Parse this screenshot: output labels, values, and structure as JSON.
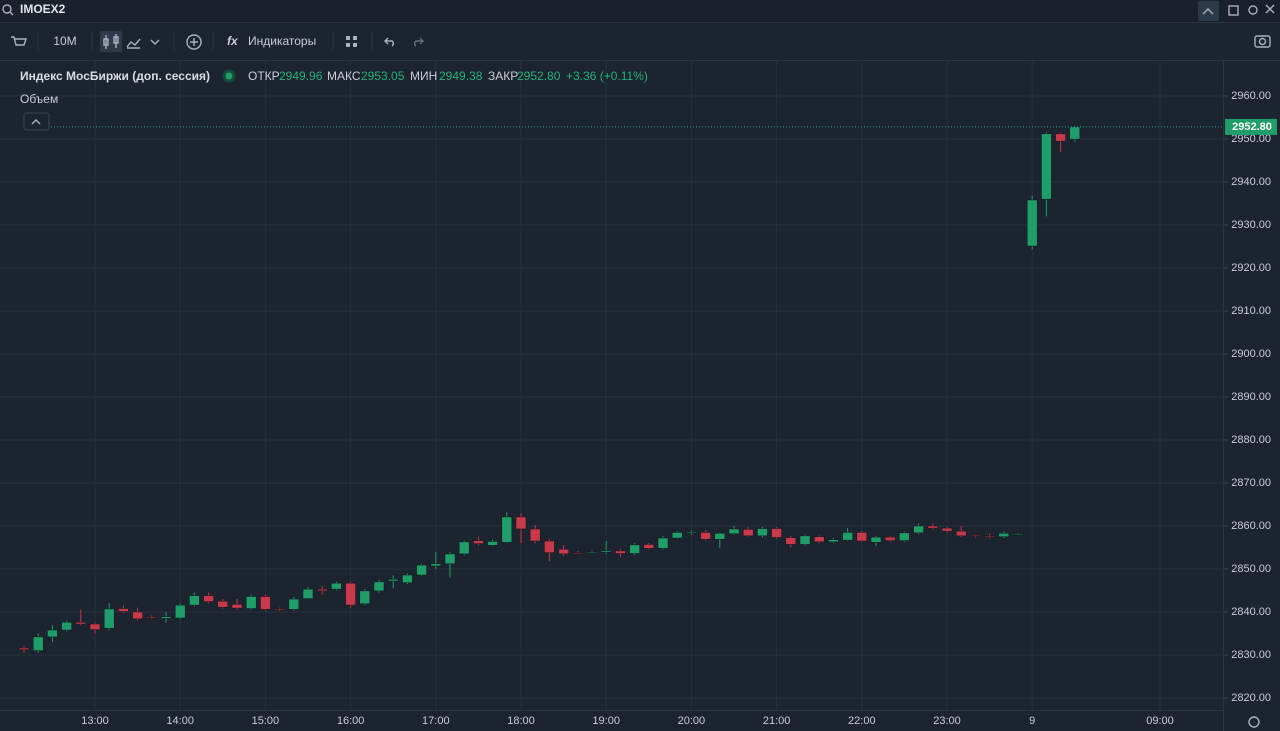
{
  "search": "IMOEX2",
  "toolbar": {
    "interval": "10М",
    "indicators": "Индикаторы"
  },
  "legend": {
    "name": "Индекс МосБиржи (доп. сессия)",
    "open_label": "ОТКР",
    "open": "2949.96",
    "high_label": "МАКС",
    "high": "2953.05",
    "low_label": "МИН",
    "low": "2949.38",
    "close_label": "ЗАКР",
    "close": "2952.80",
    "change": "+3.36 (+0.11%)"
  },
  "volume_label": "Объем",
  "chart_data": {
    "type": "candlestick",
    "up_color": "#1f9e6a",
    "down_color": "#c8394b",
    "categories": [
      null,
      null,
      null,
      null,
      null,
      "13:00",
      null,
      null,
      null,
      null,
      null,
      "14:00",
      null,
      null,
      null,
      null,
      null,
      "15:00",
      null,
      null,
      null,
      null,
      null,
      "16:00",
      null,
      null,
      null,
      null,
      null,
      "17:00",
      null,
      null,
      null,
      null,
      null,
      "18:00",
      null,
      null,
      null,
      null,
      null,
      "19:00",
      null,
      null,
      null,
      null,
      null,
      "20:00",
      null,
      null,
      null,
      null,
      null,
      "21:00",
      null,
      null,
      null,
      null,
      null,
      "22:00",
      null,
      null,
      null,
      null,
      null,
      "23:00",
      null,
      null,
      null,
      null,
      null,
      "9",
      null,
      null,
      null,
      null,
      null,
      null,
      null,
      null,
      "09:00"
    ],
    "open": [
      2831.6,
      2831,
      2834.2,
      2835.8,
      2837.6,
      2837.2,
      2836.2,
      2840.8,
      2840,
      2838.8,
      2838.5,
      2838.6,
      2841.6,
      2843.8,
      2842.5,
      2841.8,
      2840.8,
      2843.6,
      2840.7,
      2840.6,
      2843.1,
      2845.3,
      2845.3,
      2846.7,
      2841.9,
      2844.9,
      2847.2,
      2846.8,
      2848.6,
      2850.7,
      2851.2,
      2853.5,
      2856.6,
      2855.5,
      2856.2,
      2862.1,
      2859.3,
      2856.5,
      2854.6,
      2853.8,
      2853.9,
      2853.9,
      2854.2,
      2853.6,
      2855.7,
      2854.8,
      2857.2,
      2858.4,
      2858.5,
      2856.9,
      2858.2,
      2859.2,
      2857.7,
      2859.4,
      2857.3,
      2855.7,
      2857.5,
      2856.3,
      2856.7,
      2858.5,
      2856.2,
      2857.4,
      2856.6,
      2858.4,
      2860,
      2859.5,
      2858.8,
      2857.8,
      2857.7,
      2857.5,
      2858,
      2925.1,
      2936,
      2951.2,
      2949.96,
      null,
      null,
      null,
      null,
      null,
      null
    ],
    "high": [
      2832,
      2835,
      2837,
      2838,
      2840.5,
      2837.5,
      2842,
      2841.5,
      2841,
      2839.2,
      2840,
      2842,
      2844.5,
      2844.5,
      2843,
      2843,
      2844,
      2844,
      2841,
      2843.5,
      2845.8,
      2846,
      2847,
      2847,
      2845.3,
      2847.5,
      2848.5,
      2849,
      2851.2,
      2854,
      2854,
      2856.6,
      2857.5,
      2856.8,
      2863.2,
      2863,
      2860.2,
      2857,
      2855.5,
      2854.2,
      2854.3,
      2856.5,
      2854.7,
      2856,
      2856,
      2857.6,
      2858.8,
      2859,
      2859,
      2858.5,
      2860,
      2859.8,
      2859.8,
      2859.7,
      2857.7,
      2858,
      2857.8,
      2857.2,
      2859.5,
      2858.8,
      2857.7,
      2857.7,
      2858.7,
      2860.5,
      2860.6,
      2859.8,
      2860,
      2858,
      2858.2,
      2858.7,
      2858.3,
      2936.8,
      2951.6,
      2951.5,
      2953.05,
      null,
      null,
      null,
      null,
      null,
      null
    ],
    "low": [
      2830.5,
      2830.5,
      2833,
      2835.5,
      2836.8,
      2835,
      2835.8,
      2839.8,
      2838,
      2838.3,
      2837.5,
      2838.3,
      2841.3,
      2842,
      2840.8,
      2840.5,
      2840.5,
      2840.3,
      2840.2,
      2840.3,
      2843,
      2844,
      2845,
      2841,
      2841.6,
      2844.5,
      2845.5,
      2846.5,
      2848.3,
      2850,
      2848,
      2853.2,
      2855.5,
      2855.3,
      2856,
      2856,
      2856,
      2851.8,
      2853,
      2853.5,
      2853.6,
      2853.5,
      2852.8,
      2853.2,
      2854.5,
      2854.5,
      2857,
      2858,
      2856.6,
      2854.8,
      2858,
      2857.5,
      2857.3,
      2857,
      2855,
      2855.3,
      2856,
      2856,
      2856.5,
      2856.2,
      2855.3,
      2856.3,
      2856.3,
      2858.1,
      2859.2,
      2858.5,
      2857.4,
      2857.3,
      2857.2,
      2857.2,
      2857.9,
      2924.3,
      2932,
      2947,
      2949.38,
      null,
      null,
      null,
      null,
      null,
      null
    ],
    "close": [
      2831.2,
      2834.2,
      2835.8,
      2837.6,
      2837.2,
      2835.9,
      2840.7,
      2840.1,
      2838.4,
      2838.7,
      2838.9,
      2841.6,
      2843.8,
      2842.4,
      2841.1,
      2840.9,
      2843.6,
      2840.6,
      2840.5,
      2843,
      2845.3,
      2844.9,
      2846.7,
      2841.6,
      2844.9,
      2847,
      2847.6,
      2848.6,
      2850.9,
      2851.2,
      2853.5,
      2856.3,
      2855.9,
      2856.4,
      2862.1,
      2859.3,
      2856.5,
      2853.8,
      2853.5,
      2853.7,
      2854,
      2854.2,
      2853.6,
      2855.6,
      2854.8,
      2857.2,
      2858.5,
      2858.6,
      2856.9,
      2858.3,
      2859.3,
      2857.7,
      2859.4,
      2857.3,
      2855.7,
      2857.7,
      2856.3,
      2856.8,
      2858.5,
      2856.5,
      2857.4,
      2856.6,
      2858.4,
      2860,
      2859.5,
      2858.8,
      2857.7,
      2857.6,
      2857.6,
      2858.3,
      2858.1,
      2935.8,
      2951.2,
      2949.5,
      2952.8,
      null,
      null,
      null,
      null,
      null,
      null
    ],
    "ylim": [
      2817.2,
      2967.9
    ],
    "yticks": [
      {
        "value": 2820,
        "label": "2820.00"
      },
      {
        "value": 2830,
        "label": "2830.00"
      },
      {
        "value": 2840,
        "label": "2840.00"
      },
      {
        "value": 2850,
        "label": "2850.00"
      },
      {
        "value": 2860,
        "label": "2860.00"
      },
      {
        "value": 2870,
        "label": "2870.00"
      },
      {
        "value": 2880,
        "label": "2880.00"
      },
      {
        "value": 2890,
        "label": "2890.00"
      },
      {
        "value": 2900,
        "label": "2900.00"
      },
      {
        "value": 2910,
        "label": "2910.00"
      },
      {
        "value": 2920,
        "label": "2920.00"
      },
      {
        "value": 2930,
        "label": "2930.00"
      },
      {
        "value": 2940,
        "label": "2940.00"
      },
      {
        "value": 2950,
        "label": "2950.00"
      },
      {
        "value": 2960,
        "label": "2960.00"
      }
    ],
    "last_price": {
      "value": 2952.8,
      "label": "2952.80"
    },
    "grid": true
  }
}
